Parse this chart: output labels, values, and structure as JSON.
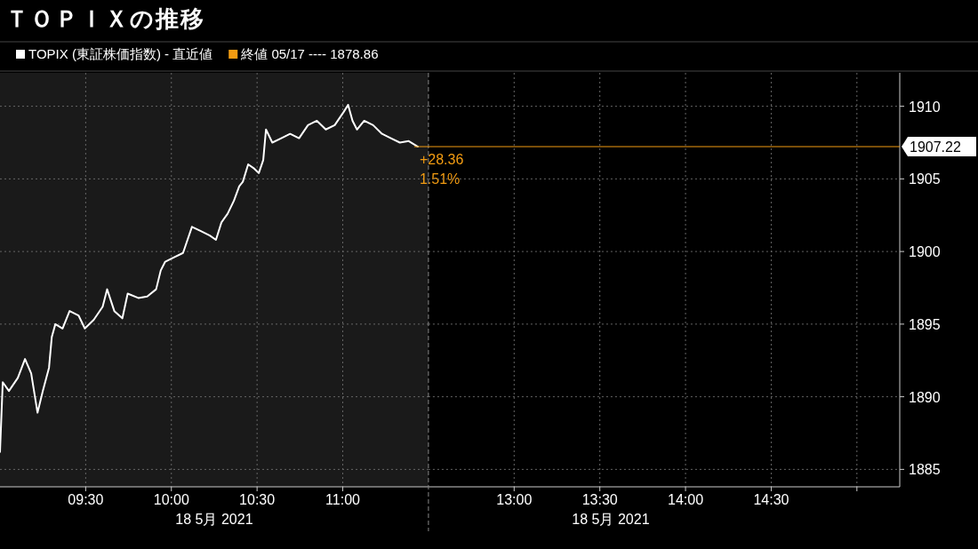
{
  "chart_data": [
    {
      "type": "line",
      "title": "ＴＯＰＩＸの推移",
      "x": [
        9.0,
        9.016,
        9.052,
        9.104,
        9.146,
        9.182,
        9.219,
        9.25,
        9.286,
        9.302,
        9.323,
        9.365,
        9.406,
        9.458,
        9.495,
        9.547,
        9.599,
        9.625,
        9.667,
        9.714,
        9.745,
        9.807,
        9.859,
        9.911,
        9.938,
        9.964,
        10.016,
        10.068,
        10.12,
        10.172,
        10.224,
        10.26,
        10.292,
        10.328,
        10.365,
        10.396,
        10.417,
        10.448,
        10.484,
        10.51,
        10.536,
        10.552,
        10.589,
        10.641,
        10.693,
        10.745,
        10.797,
        10.849,
        10.901,
        10.953,
        11.005,
        11.031,
        11.057,
        11.083,
        11.125,
        11.177,
        11.229,
        11.281,
        11.333,
        11.385,
        11.438
      ],
      "series": [
        {
          "name": "TOPIX (東証株価指数) - 直近値",
          "color": "#ffffff",
          "values": [
            1886.2,
            1891.0,
            1890.4,
            1891.3,
            1892.6,
            1891.6,
            1888.9,
            1890.4,
            1892.0,
            1894.1,
            1895.0,
            1894.7,
            1895.9,
            1895.6,
            1894.7,
            1895.3,
            1896.2,
            1897.4,
            1895.9,
            1895.4,
            1897.1,
            1896.8,
            1896.9,
            1897.4,
            1898.7,
            1899.3,
            1899.6,
            1899.9,
            1901.7,
            1901.4,
            1901.1,
            1900.8,
            1902.0,
            1902.6,
            1903.5,
            1904.5,
            1904.8,
            1906.0,
            1905.7,
            1905.4,
            1906.3,
            1908.4,
            1907.5,
            1907.8,
            1908.1,
            1907.8,
            1908.7,
            1909.0,
            1908.4,
            1908.7,
            1909.6,
            1910.1,
            1909.0,
            1908.4,
            1909.0,
            1908.7,
            1908.1,
            1907.8,
            1907.5,
            1907.6,
            1907.22
          ]
        }
      ],
      "xlim": [
        9,
        11.5
      ],
      "xticks": [
        {
          "value": 9.5,
          "label": "09:30"
        },
        {
          "value": 10,
          "label": "10:00"
        },
        {
          "value": 10.5,
          "label": "10:30"
        },
        {
          "value": 11,
          "label": "11:00"
        }
      ],
      "ylim": [
        1883.8,
        1912.3
      ],
      "yticks": [
        1885,
        1890,
        1895,
        1900,
        1905,
        1910
      ],
      "tick_labels": "x",
      "grid": true,
      "legend": "top left",
      "marker": "none",
      "line_style": "solid",
      "bands": [
        {
          "axis": "x",
          "from": 9,
          "to": 11.5,
          "color": "#1a1a1a"
        }
      ],
      "annotations": [
        "終値 05/17 ---- 1878.86",
        "+28.36",
        "1.51%",
        "18 5月 2021"
      ]
    },
    {
      "type": "line",
      "xlim": [
        12.5,
        15.25
      ],
      "xticks": [
        {
          "value": 13,
          "label": "13:00"
        },
        {
          "value": 13.5,
          "label": "13:30"
        },
        {
          "value": 14,
          "label": "14:00"
        },
        {
          "value": 14.5,
          "label": "14:30"
        },
        {
          "value": 15,
          "label": null
        }
      ],
      "ylim": [
        1883.8,
        1912.3
      ],
      "yticks": [
        1885,
        1890,
        1895,
        1900,
        1905,
        1910
      ],
      "grid": true,
      "ref_lines": [
        {
          "axis": "y",
          "value": 1907.22,
          "label": "1907.22",
          "color": "#f39c12"
        }
      ],
      "annotations": [
        "18 5月 2021"
      ]
    }
  ]
}
